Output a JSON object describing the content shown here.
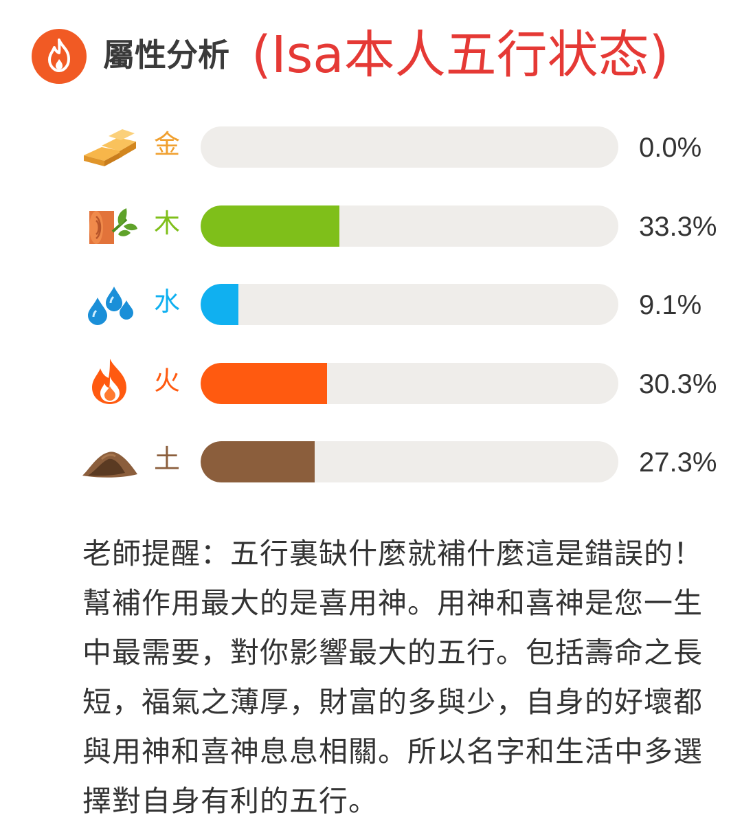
{
  "header": {
    "icon": "flame-icon",
    "title": "屬性分析",
    "note": "(Isa本人五行状态)",
    "note_color": "#e53935",
    "icon_color": "#f15a24"
  },
  "chart_data": {
    "type": "bar",
    "orientation": "horizontal",
    "categories": [
      "金",
      "木",
      "水",
      "火",
      "土"
    ],
    "values": [
      0.0,
      33.3,
      9.1,
      30.3,
      27.3
    ],
    "value_labels": [
      "0.0%",
      "33.3%",
      "9.1%",
      "30.3%",
      "27.3%"
    ],
    "colors": [
      "#f0a030",
      "#7fbf1a",
      "#10b0f0",
      "#ff5a10",
      "#8b5e3c"
    ],
    "icons": [
      "gold-bars-icon",
      "wood-log-icon",
      "water-drops-icon",
      "fire-icon",
      "earth-mound-icon"
    ],
    "xlim": [
      0,
      100
    ],
    "grid": false,
    "legend": "none"
  },
  "tip": "老師提醒：五行裏缺什麼就補什麼這是錯誤的！幫補作用最大的是喜用神。用神和喜神是您一生中最需要，對你影響最大的五行。包括壽命之長短，福氣之薄厚，財富的多與少，自身的好壞都與用神和喜神息息相關。所以名字和生活中多選擇對自身有利的五行。"
}
